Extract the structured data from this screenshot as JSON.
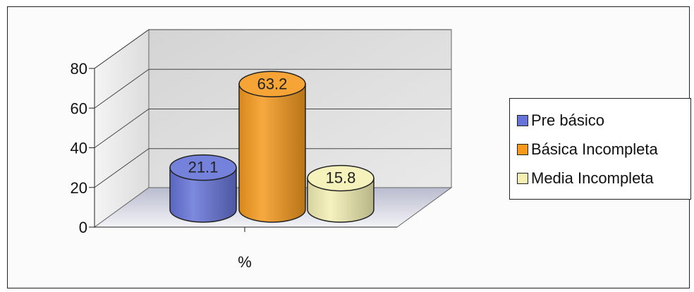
{
  "chart_data": {
    "type": "bar",
    "categories": [
      "%"
    ],
    "series": [
      {
        "name": "Pre básico",
        "values": [
          21.1
        ],
        "label": "21.1",
        "color": "#6674d8"
      },
      {
        "name": "Básica Incompleta",
        "values": [
          63.2
        ],
        "label": "63.2",
        "color": "#f59a1e"
      },
      {
        "name": "Media Incompleta",
        "values": [
          15.8
        ],
        "label": "15.8",
        "color": "#f4f0b4"
      }
    ],
    "xlabel": "%",
    "ylabel": "",
    "ylim": [
      0,
      80
    ],
    "y_ticks": [
      "0",
      "20",
      "40",
      "60",
      "80"
    ],
    "grid": true,
    "style": "3d-cylinder",
    "legend_position": "right"
  }
}
